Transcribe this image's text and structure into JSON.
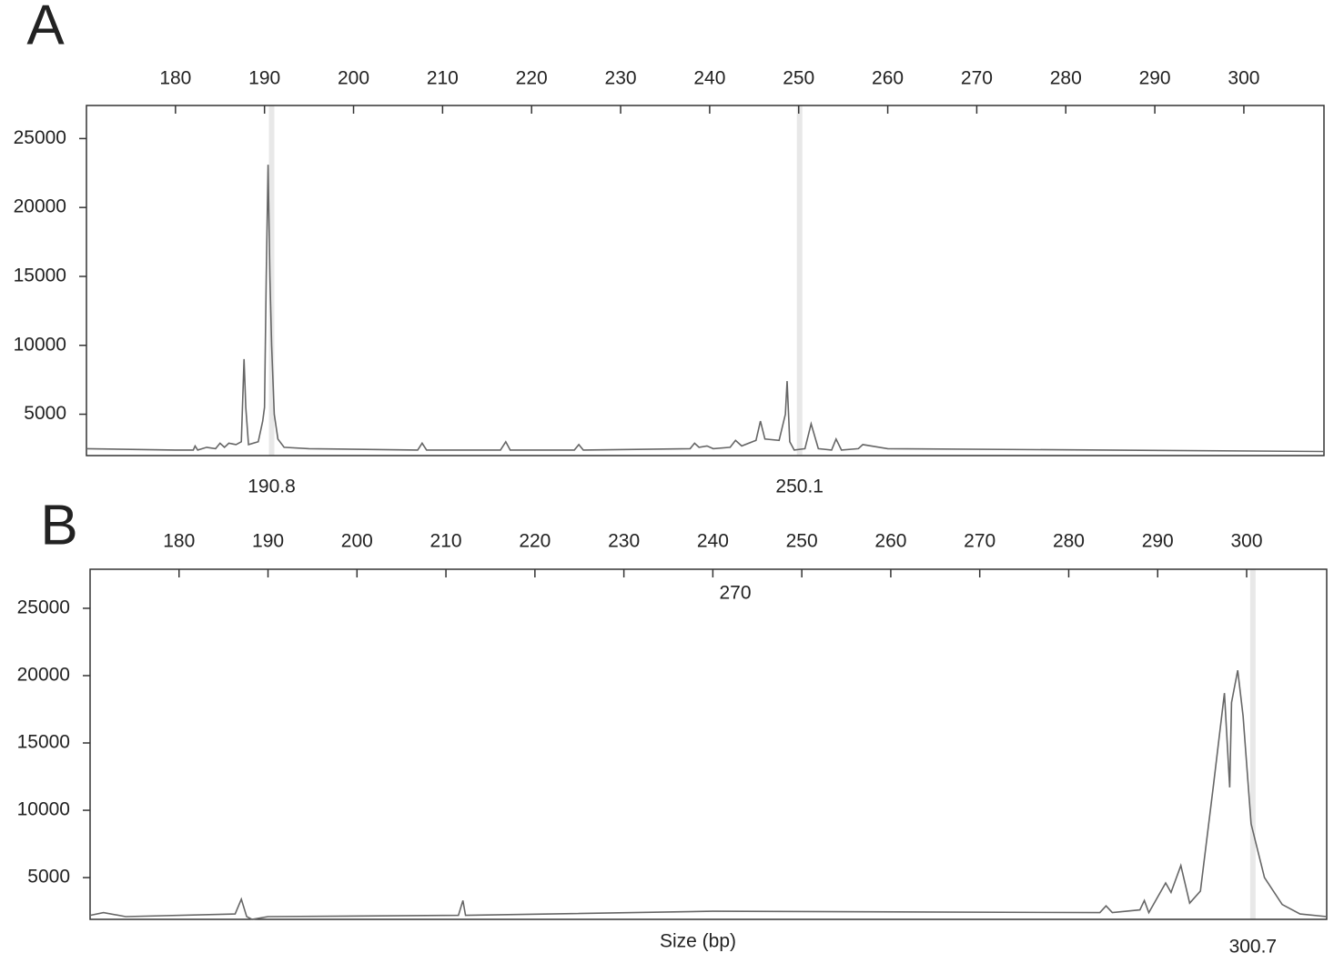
{
  "chart_data": [
    {
      "type": "line",
      "panel_label": "A",
      "color": "#666666",
      "xlim": [
        170,
        309
      ],
      "xticks": [
        180,
        190,
        200,
        210,
        220,
        230,
        240,
        250,
        260,
        270,
        280,
        290,
        300
      ],
      "ylim": [
        2000,
        27400
      ],
      "yticks": [
        5000,
        10000,
        15000,
        20000,
        25000
      ],
      "peak_labels": [
        190.8,
        250.1
      ],
      "x": [
        170,
        180,
        182,
        182.2,
        182.5,
        183.5,
        184.5,
        185,
        185.5,
        186,
        186.8,
        187.4,
        187.7,
        187.9,
        188.2,
        189.3,
        189.8,
        190,
        190.2,
        190.4,
        190.6,
        190.8,
        191.1,
        191.5,
        192.2,
        195,
        207.2,
        207.7,
        208.2,
        216.5,
        217.1,
        217.6,
        224.8,
        225.3,
        225.8,
        237.8,
        238.3,
        238.8,
        239.7,
        240.4,
        242.3,
        242.9,
        243.6,
        245.2,
        245.7,
        246.2,
        247.8,
        248.5,
        248.7,
        249,
        249.5,
        250.7,
        251.4,
        252.2,
        253.7,
        254.2,
        254.8,
        256.7,
        257.2,
        260,
        309
      ],
      "values": [
        2500,
        2400,
        2400,
        2700,
        2400,
        2600,
        2500,
        2900,
        2600,
        2900,
        2800,
        3000,
        9000,
        5500,
        2800,
        3000,
        4500,
        5500,
        15000,
        23100,
        15000,
        10000,
        5000,
        3200,
        2600,
        2500,
        2400,
        2900,
        2400,
        2400,
        3000,
        2400,
        2400,
        2800,
        2400,
        2500,
        2900,
        2600,
        2700,
        2500,
        2600,
        3100,
        2700,
        3100,
        4500,
        3200,
        3100,
        5000,
        7400,
        3000,
        2400,
        2500,
        4300,
        2500,
        2400,
        3200,
        2400,
        2500,
        2800,
        2500,
        2300
      ]
    },
    {
      "type": "line",
      "panel_label": "B",
      "color": "#666666",
      "xlim": [
        170,
        309
      ],
      "xticks": [
        180,
        190,
        200,
        210,
        220,
        230,
        240,
        250,
        260,
        270,
        280,
        290,
        300
      ],
      "ylim": [
        1900,
        27900
      ],
      "yticks": [
        5000,
        10000,
        15000,
        20000,
        25000
      ],
      "peak_labels": [
        300.7
      ],
      "annotation": "270",
      "x_label": "Size (bp)",
      "x": [
        170,
        171.5,
        174,
        186.3,
        187,
        187.6,
        188.2,
        190,
        211.4,
        211.9,
        212.2,
        240,
        283.5,
        284.2,
        284.9,
        288,
        288.5,
        289,
        290.9,
        291.5,
        292.6,
        293.6,
        294.8,
        296.3,
        297.5,
        298.1,
        298.3,
        299,
        299.6,
        300.5,
        302,
        304,
        306,
        309
      ],
      "values": [
        2200,
        2400,
        2100,
        2300,
        3400,
        2100,
        1900,
        2100,
        2200,
        3300,
        2200,
        2500,
        2400,
        2900,
        2400,
        2600,
        3300,
        2400,
        4600,
        3900,
        5900,
        3100,
        4000,
        12000,
        18700,
        11700,
        18000,
        20400,
        17000,
        9000,
        5000,
        3000,
        2300,
        2100
      ]
    }
  ]
}
